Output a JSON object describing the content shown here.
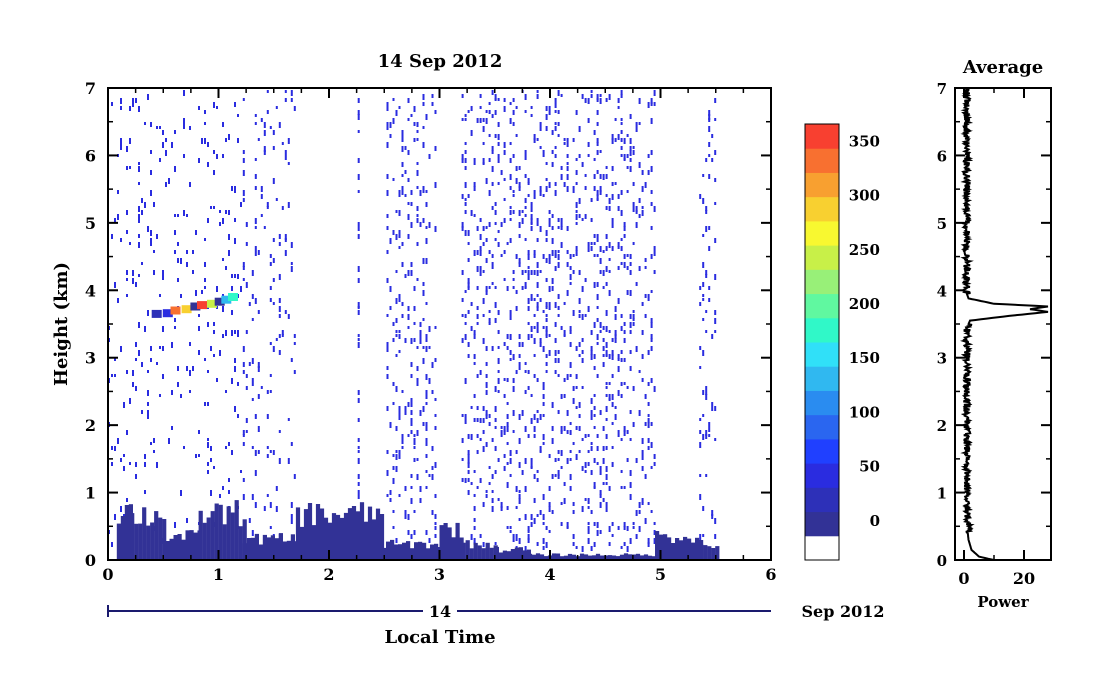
{
  "chart_data": [
    {
      "type": "heatmap",
      "title": "14 Sep 2012",
      "xlabel": "Local Time",
      "ylabel": "Height (km)",
      "xlim": [
        0,
        6
      ],
      "ylim": [
        0,
        7
      ],
      "xticks": [
        "0",
        "1",
        "2",
        "3",
        "4",
        "5",
        "6"
      ],
      "yticks": [
        "0",
        "1",
        "2",
        "3",
        "4",
        "5",
        "6",
        "7"
      ],
      "date_axis": {
        "day": "14",
        "month_year": "Sep 2012"
      },
      "colorbar": {
        "ticks": [
          "0",
          "50",
          "100",
          "150",
          "200",
          "250",
          "300",
          "350"
        ],
        "range": [
          0,
          380
        ],
        "colors": [
          "#ffffff",
          "#323296",
          "#2d30b8",
          "#2a2ce0",
          "#2040ff",
          "#2a66f0",
          "#2a8cf0",
          "#30b8f0",
          "#30e0f8",
          "#30f8c8",
          "#60f8a0",
          "#98f078",
          "#c8f048",
          "#f8f830",
          "#f8d030",
          "#f8a030",
          "#f87030",
          "#f84030"
        ]
      },
      "low_layer": [
        {
          "t0": 0.08,
          "t1": 0.2,
          "h": 0.95
        },
        {
          "t0": 0.2,
          "t1": 0.52,
          "h": 0.85
        },
        {
          "t0": 0.52,
          "t1": 0.82,
          "h": 0.45
        },
        {
          "t0": 0.82,
          "t1": 1.22,
          "h": 0.9
        },
        {
          "t0": 1.22,
          "t1": 1.7,
          "h": 0.4
        },
        {
          "t0": 1.7,
          "t1": 2.48,
          "h": 0.88
        },
        {
          "t0": 2.48,
          "t1": 3.0,
          "h": 0.3
        },
        {
          "t0": 3.0,
          "t1": 3.2,
          "h": 0.6
        },
        {
          "t0": 3.2,
          "t1": 3.5,
          "h": 0.3
        },
        {
          "t0": 3.5,
          "t1": 3.8,
          "h": 0.2
        },
        {
          "t0": 3.8,
          "t1": 4.95,
          "h": 0.1
        },
        {
          "t0": 4.95,
          "t1": 5.35,
          "h": 0.45
        },
        {
          "t0": 5.35,
          "t1": 5.5,
          "h": 0.25
        }
      ],
      "noise_bands": [
        {
          "t0": 0.0,
          "t1": 1.2,
          "density": 0.05
        },
        {
          "t0": 1.22,
          "t1": 1.7,
          "density": 0.07
        },
        {
          "t0": 2.26,
          "t1": 2.28,
          "density": 0.3
        },
        {
          "t0": 2.52,
          "t1": 2.98,
          "density": 0.12
        },
        {
          "t0": 3.2,
          "t1": 4.95,
          "density": 0.14
        },
        {
          "t0": 5.35,
          "t1": 5.5,
          "density": 0.1
        }
      ],
      "cloud": [
        {
          "t": 0.45,
          "h": 3.65,
          "v": 40
        },
        {
          "t": 0.55,
          "h": 3.66,
          "v": 60
        },
        {
          "t": 0.62,
          "h": 3.7,
          "v": 340
        },
        {
          "t": 0.72,
          "h": 3.72,
          "v": 300
        },
        {
          "t": 0.8,
          "h": 3.76,
          "v": 20
        },
        {
          "t": 0.86,
          "h": 3.78,
          "v": 360
        },
        {
          "t": 0.95,
          "h": 3.8,
          "v": 250
        },
        {
          "t": 1.02,
          "h": 3.83,
          "v": 10
        },
        {
          "t": 1.08,
          "h": 3.86,
          "v": 150
        },
        {
          "t": 1.14,
          "h": 3.9,
          "v": 200
        }
      ]
    },
    {
      "type": "line",
      "title": "Average",
      "xlabel": "Power",
      "xlim": [
        -3,
        29
      ],
      "ylim": [
        0,
        7
      ],
      "xticks": [
        "0",
        "20"
      ],
      "yticks": [
        "0",
        "1",
        "2",
        "3",
        "4",
        "5",
        "6",
        "7"
      ],
      "profile": [
        {
          "h": 0.0,
          "p": 10
        },
        {
          "h": 0.05,
          "p": 5
        },
        {
          "h": 0.15,
          "p": 2.5
        },
        {
          "h": 0.3,
          "p": 1.5
        },
        {
          "h": 0.6,
          "p": 0.8
        },
        {
          "h": 1.0,
          "p": 0.6
        },
        {
          "h": 2.0,
          "p": 0.5
        },
        {
          "h": 3.0,
          "p": 0.5
        },
        {
          "h": 3.4,
          "p": 0.5
        },
        {
          "h": 3.55,
          "p": 2
        },
        {
          "h": 3.62,
          "p": 15
        },
        {
          "h": 3.68,
          "p": 28
        },
        {
          "h": 3.72,
          "p": 22
        },
        {
          "h": 3.76,
          "p": 28
        },
        {
          "h": 3.8,
          "p": 10
        },
        {
          "h": 3.88,
          "p": 1.5
        },
        {
          "h": 4.0,
          "p": 0.5
        },
        {
          "h": 5.0,
          "p": 0.5
        },
        {
          "h": 6.0,
          "p": 0.5
        },
        {
          "h": 7.0,
          "p": 0.5
        }
      ]
    }
  ]
}
